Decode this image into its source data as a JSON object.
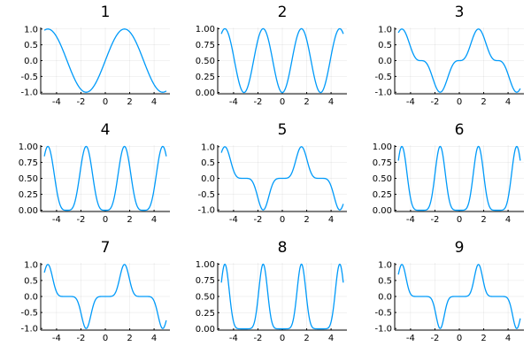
{
  "figure": {
    "layout": "3x3 grid of line plots",
    "line_color": "#009af9"
  },
  "chart_data": [
    {
      "type": "line",
      "title": "1",
      "function": "sin(x)^1",
      "xlim": [
        -5.3,
        5.3
      ],
      "ylim": [
        -1.05,
        1.05
      ],
      "x_ticks": [
        -4,
        -2,
        0,
        2,
        4
      ],
      "x_tick_labels": [
        "-4",
        "-2",
        "0",
        "2",
        "4"
      ],
      "y_ticks": [
        -1,
        -0.5,
        0,
        0.5,
        1
      ],
      "y_tick_labels": [
        "-1.0",
        "-0.5",
        "0.0",
        "0.5",
        "1.0"
      ],
      "grid": true,
      "legend": "none"
    },
    {
      "type": "line",
      "title": "2",
      "function": "sin(x)^2",
      "xlim": [
        -5.3,
        5.3
      ],
      "ylim": [
        -0.02,
        1.02
      ],
      "x_ticks": [
        -4,
        -2,
        0,
        2,
        4
      ],
      "x_tick_labels": [
        "-4",
        "-2",
        "0",
        "2",
        "4"
      ],
      "y_ticks": [
        0,
        0.25,
        0.5,
        0.75,
        1
      ],
      "y_tick_labels": [
        "0.00",
        "0.25",
        "0.50",
        "0.75",
        "1.00"
      ],
      "grid": true,
      "legend": "none"
    },
    {
      "type": "line",
      "title": "3",
      "function": "sin(x)^3",
      "xlim": [
        -5.3,
        5.3
      ],
      "ylim": [
        -1.05,
        1.05
      ],
      "x_ticks": [
        -4,
        -2,
        0,
        2,
        4
      ],
      "x_tick_labels": [
        "-4",
        "-2",
        "0",
        "2",
        "4"
      ],
      "y_ticks": [
        -1,
        -0.5,
        0,
        0.5,
        1
      ],
      "y_tick_labels": [
        "-1.0",
        "-0.5",
        "0.0",
        "0.5",
        "1.0"
      ],
      "grid": true,
      "legend": "none"
    },
    {
      "type": "line",
      "title": "4",
      "function": "sin(x)^4",
      "xlim": [
        -5.3,
        5.3
      ],
      "ylim": [
        -0.02,
        1.02
      ],
      "x_ticks": [
        -4,
        -2,
        0,
        2,
        4
      ],
      "x_tick_labels": [
        "-4",
        "-2",
        "0",
        "2",
        "4"
      ],
      "y_ticks": [
        0,
        0.25,
        0.5,
        0.75,
        1
      ],
      "y_tick_labels": [
        "0.00",
        "0.25",
        "0.50",
        "0.75",
        "1.00"
      ],
      "grid": true,
      "legend": "none"
    },
    {
      "type": "line",
      "title": "5",
      "function": "sin(x)^5",
      "xlim": [
        -5.3,
        5.3
      ],
      "ylim": [
        -1.05,
        1.05
      ],
      "x_ticks": [
        -4,
        -2,
        0,
        2,
        4
      ],
      "x_tick_labels": [
        "-4",
        "-2",
        "0",
        "2",
        "4"
      ],
      "y_ticks": [
        -1,
        -0.5,
        0,
        0.5,
        1
      ],
      "y_tick_labels": [
        "-1.0",
        "-0.5",
        "0.0",
        "0.5",
        "1.0"
      ],
      "grid": true,
      "legend": "none"
    },
    {
      "type": "line",
      "title": "6",
      "function": "sin(x)^6",
      "xlim": [
        -5.3,
        5.3
      ],
      "ylim": [
        -0.02,
        1.02
      ],
      "x_ticks": [
        -4,
        -2,
        0,
        2,
        4
      ],
      "x_tick_labels": [
        "-4",
        "-2",
        "0",
        "2",
        "4"
      ],
      "y_ticks": [
        0,
        0.25,
        0.5,
        0.75,
        1
      ],
      "y_tick_labels": [
        "0.00",
        "0.25",
        "0.50",
        "0.75",
        "1.00"
      ],
      "grid": true,
      "legend": "none"
    },
    {
      "type": "line",
      "title": "7",
      "function": "sin(x)^7",
      "xlim": [
        -5.3,
        5.3
      ],
      "ylim": [
        -1.05,
        1.05
      ],
      "x_ticks": [
        -4,
        -2,
        0,
        2,
        4
      ],
      "x_tick_labels": [
        "-4",
        "-2",
        "0",
        "2",
        "4"
      ],
      "y_ticks": [
        -1,
        -0.5,
        0,
        0.5,
        1
      ],
      "y_tick_labels": [
        "-1.0",
        "-0.5",
        "0.0",
        "0.5",
        "1.0"
      ],
      "grid": true,
      "legend": "none"
    },
    {
      "type": "line",
      "title": "8",
      "function": "sin(x)^8",
      "xlim": [
        -5.3,
        5.3
      ],
      "ylim": [
        -0.02,
        1.02
      ],
      "x_ticks": [
        -4,
        -2,
        0,
        2,
        4
      ],
      "x_tick_labels": [
        "-4",
        "-2",
        "0",
        "2",
        "4"
      ],
      "y_ticks": [
        0,
        0.25,
        0.5,
        0.75,
        1
      ],
      "y_tick_labels": [
        "0.00",
        "0.25",
        "0.50",
        "0.75",
        "1.00"
      ],
      "grid": true,
      "legend": "none"
    },
    {
      "type": "line",
      "title": "9",
      "function": "sin(x)^9",
      "xlim": [
        -5.3,
        5.3
      ],
      "ylim": [
        -1.05,
        1.05
      ],
      "x_ticks": [
        -4,
        -2,
        0,
        2,
        4
      ],
      "x_tick_labels": [
        "-4",
        "-2",
        "0",
        "2",
        "4"
      ],
      "y_ticks": [
        -1,
        -0.5,
        0,
        0.5,
        1
      ],
      "y_tick_labels": [
        "-1.0",
        "-0.5",
        "0.0",
        "0.5",
        "1.0"
      ],
      "grid": true,
      "legend": "none"
    }
  ]
}
